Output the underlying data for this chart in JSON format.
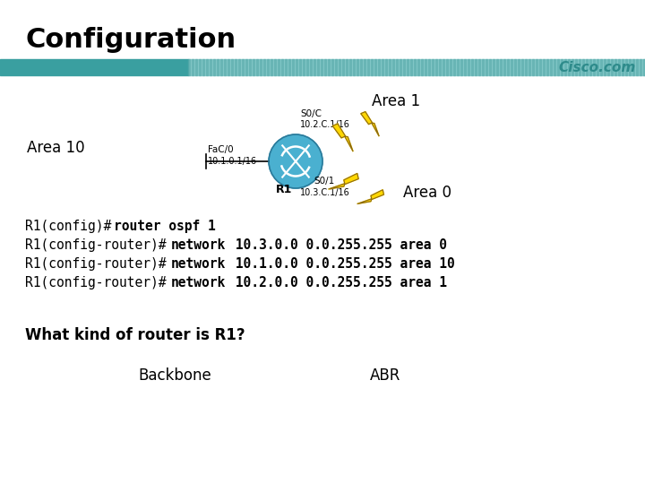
{
  "title": "Configuration",
  "title_fontsize": 22,
  "title_fontweight": "bold",
  "title_color": "#000000",
  "bg_color": "#ffffff",
  "header_bar_teal": "#3a9fa0",
  "header_bar_light": "#8ecece",
  "cisco_text": "Cisco.com",
  "cisco_color": "#2e8b8b",
  "area1_label": "Area 1",
  "area0_label": "Area 0",
  "area10_label": "Area 10",
  "s0c_label": "S0/C",
  "s0c_ip": "10.2.C.1/16",
  "fa00_label": "FaC/0",
  "fa00_ip": "10.1.0.1/16",
  "r1_label": "R1",
  "s01_label": "S0/1",
  "s01_ip": "10.3.C.1/16",
  "router_color": "#4ab0d0",
  "router_border": "#2a7a9a",
  "code_line1_normal": "R1(config)#",
  "code_line1_bold": "router ospf 1",
  "code_line2_normal": "R1(config-router)#",
  "code_line2_bold": "network",
  "code_line2_rest": " 10.3.0.0 0.0.255.255 area 0",
  "code_line3_normal": "R1(config-router)#",
  "code_line3_bold": "network",
  "code_line3_rest": " 10.1.0.0 0.0.255.255 area 10",
  "code_line4_normal": "R1(config-router)#",
  "code_line4_bold": "network",
  "code_line4_rest": " 10.2.0.0 0.0.255.255 area 1",
  "question": "What kind of router is R1?",
  "answer1": "Backbone",
  "answer2": "ABR",
  "lightning_color": "#FFD700",
  "lightning_edge": "#8B6914"
}
